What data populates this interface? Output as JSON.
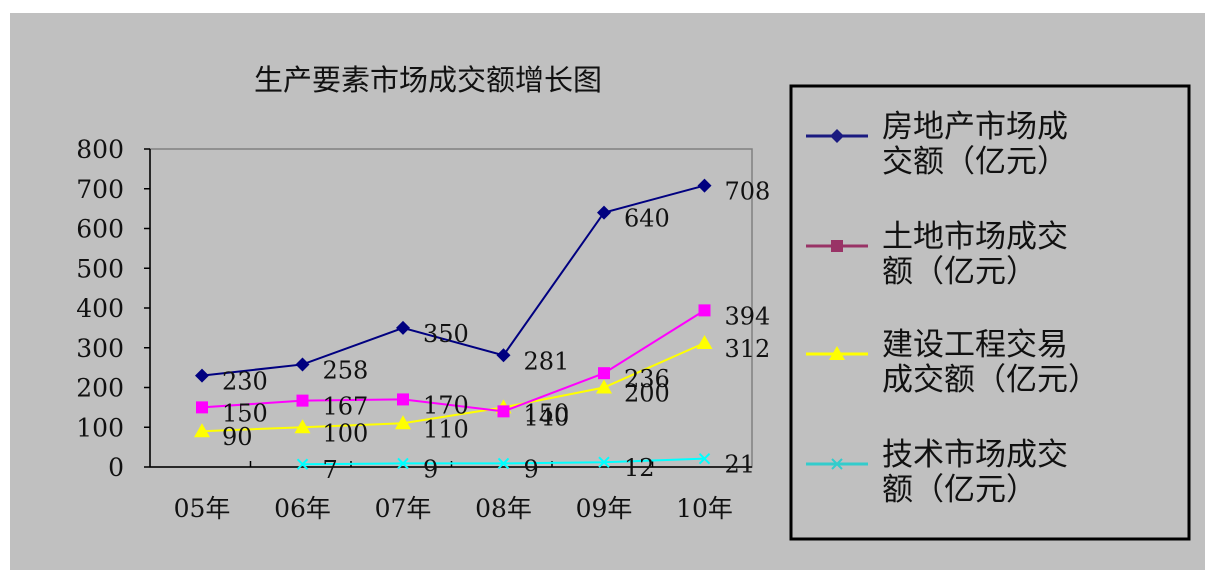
{
  "chart_data": {
    "type": "line",
    "title": "生产要素市场成交额增长图",
    "categories": [
      "05年",
      "06年",
      "07年",
      "08年",
      "09年",
      "10年"
    ],
    "ylim": [
      0,
      800
    ],
    "yticks": [
      "0",
      "100",
      "200",
      "300",
      "400",
      "500",
      "600",
      "700",
      "800"
    ],
    "grid": false,
    "legend_position": "right",
    "series": [
      {
        "name": "房地产市场成交额（亿元）",
        "legend_lines": [
          "房地产市场成",
          "交额（亿元）"
        ],
        "values": [
          230,
          258,
          350,
          281,
          640,
          708
        ],
        "color": "#000080",
        "legend_color": "#1a1a80",
        "marker": "diamond"
      },
      {
        "name": "土地市场成交额（亿元）",
        "legend_lines": [
          "土地市场成交",
          "额（亿元）"
        ],
        "values": [
          150,
          167,
          170,
          140,
          236,
          394
        ],
        "color": "#ff00ff",
        "legend_color": "#993366",
        "marker": "square"
      },
      {
        "name": "建设工程交易成交额（亿元）",
        "legend_lines": [
          "建设工程交易",
          "成交额（亿元）"
        ],
        "values": [
          90,
          100,
          110,
          150,
          200,
          312
        ],
        "color": "#ffff00",
        "legend_color": "#ffff00",
        "marker": "triangle"
      },
      {
        "name": "技术市场成交额（亿元）",
        "legend_lines": [
          "技术市场成交",
          "额（亿元）"
        ],
        "values": [
          null,
          7,
          9,
          9,
          12,
          21
        ],
        "color": "#00ffff",
        "legend_color": "#33cccc",
        "marker": "x"
      }
    ],
    "data_labels": [
      [
        "230",
        "258",
        "350",
        "281",
        "640",
        "708"
      ],
      [
        "150",
        "167",
        "170",
        "140",
        "236",
        "394"
      ],
      [
        "90",
        "100",
        "110",
        "150",
        "200",
        "312"
      ],
      [
        "",
        "7",
        "9",
        "9",
        "12",
        "21"
      ]
    ]
  },
  "colors": {
    "panel_background": "#c0c0c0",
    "axis_frame": "#808080",
    "legend_border": "#000000"
  }
}
